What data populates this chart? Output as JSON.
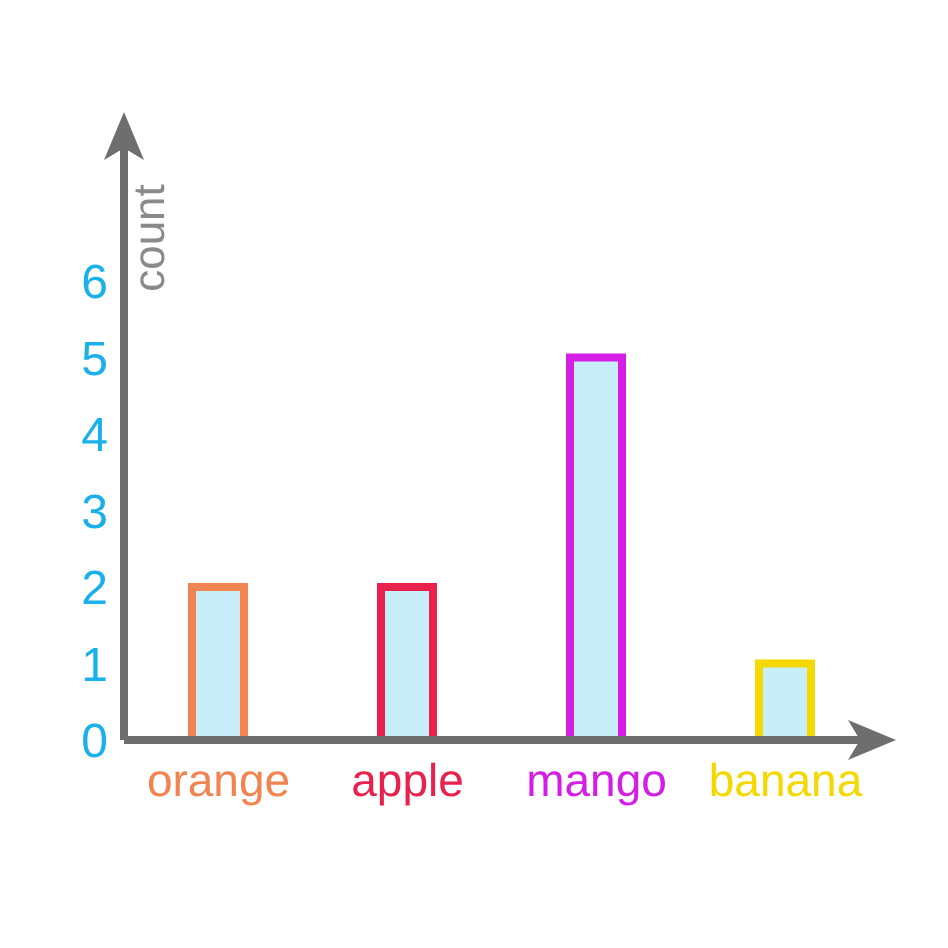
{
  "chart_data": {
    "type": "bar",
    "ylabel": "count",
    "categories": [
      "orange",
      "apple",
      "mango",
      "banana"
    ],
    "values": [
      2,
      2,
      5,
      1
    ],
    "color": "#c8eefa",
    "colors": [
      "#f08552",
      "#e8214d",
      "#d41ee6",
      "#f5d800"
    ],
    "ylim": [
      0,
      8
    ],
    "yticks": [
      0,
      1,
      2,
      3,
      4,
      5,
      6
    ],
    "grid": false,
    "legend": false
  }
}
